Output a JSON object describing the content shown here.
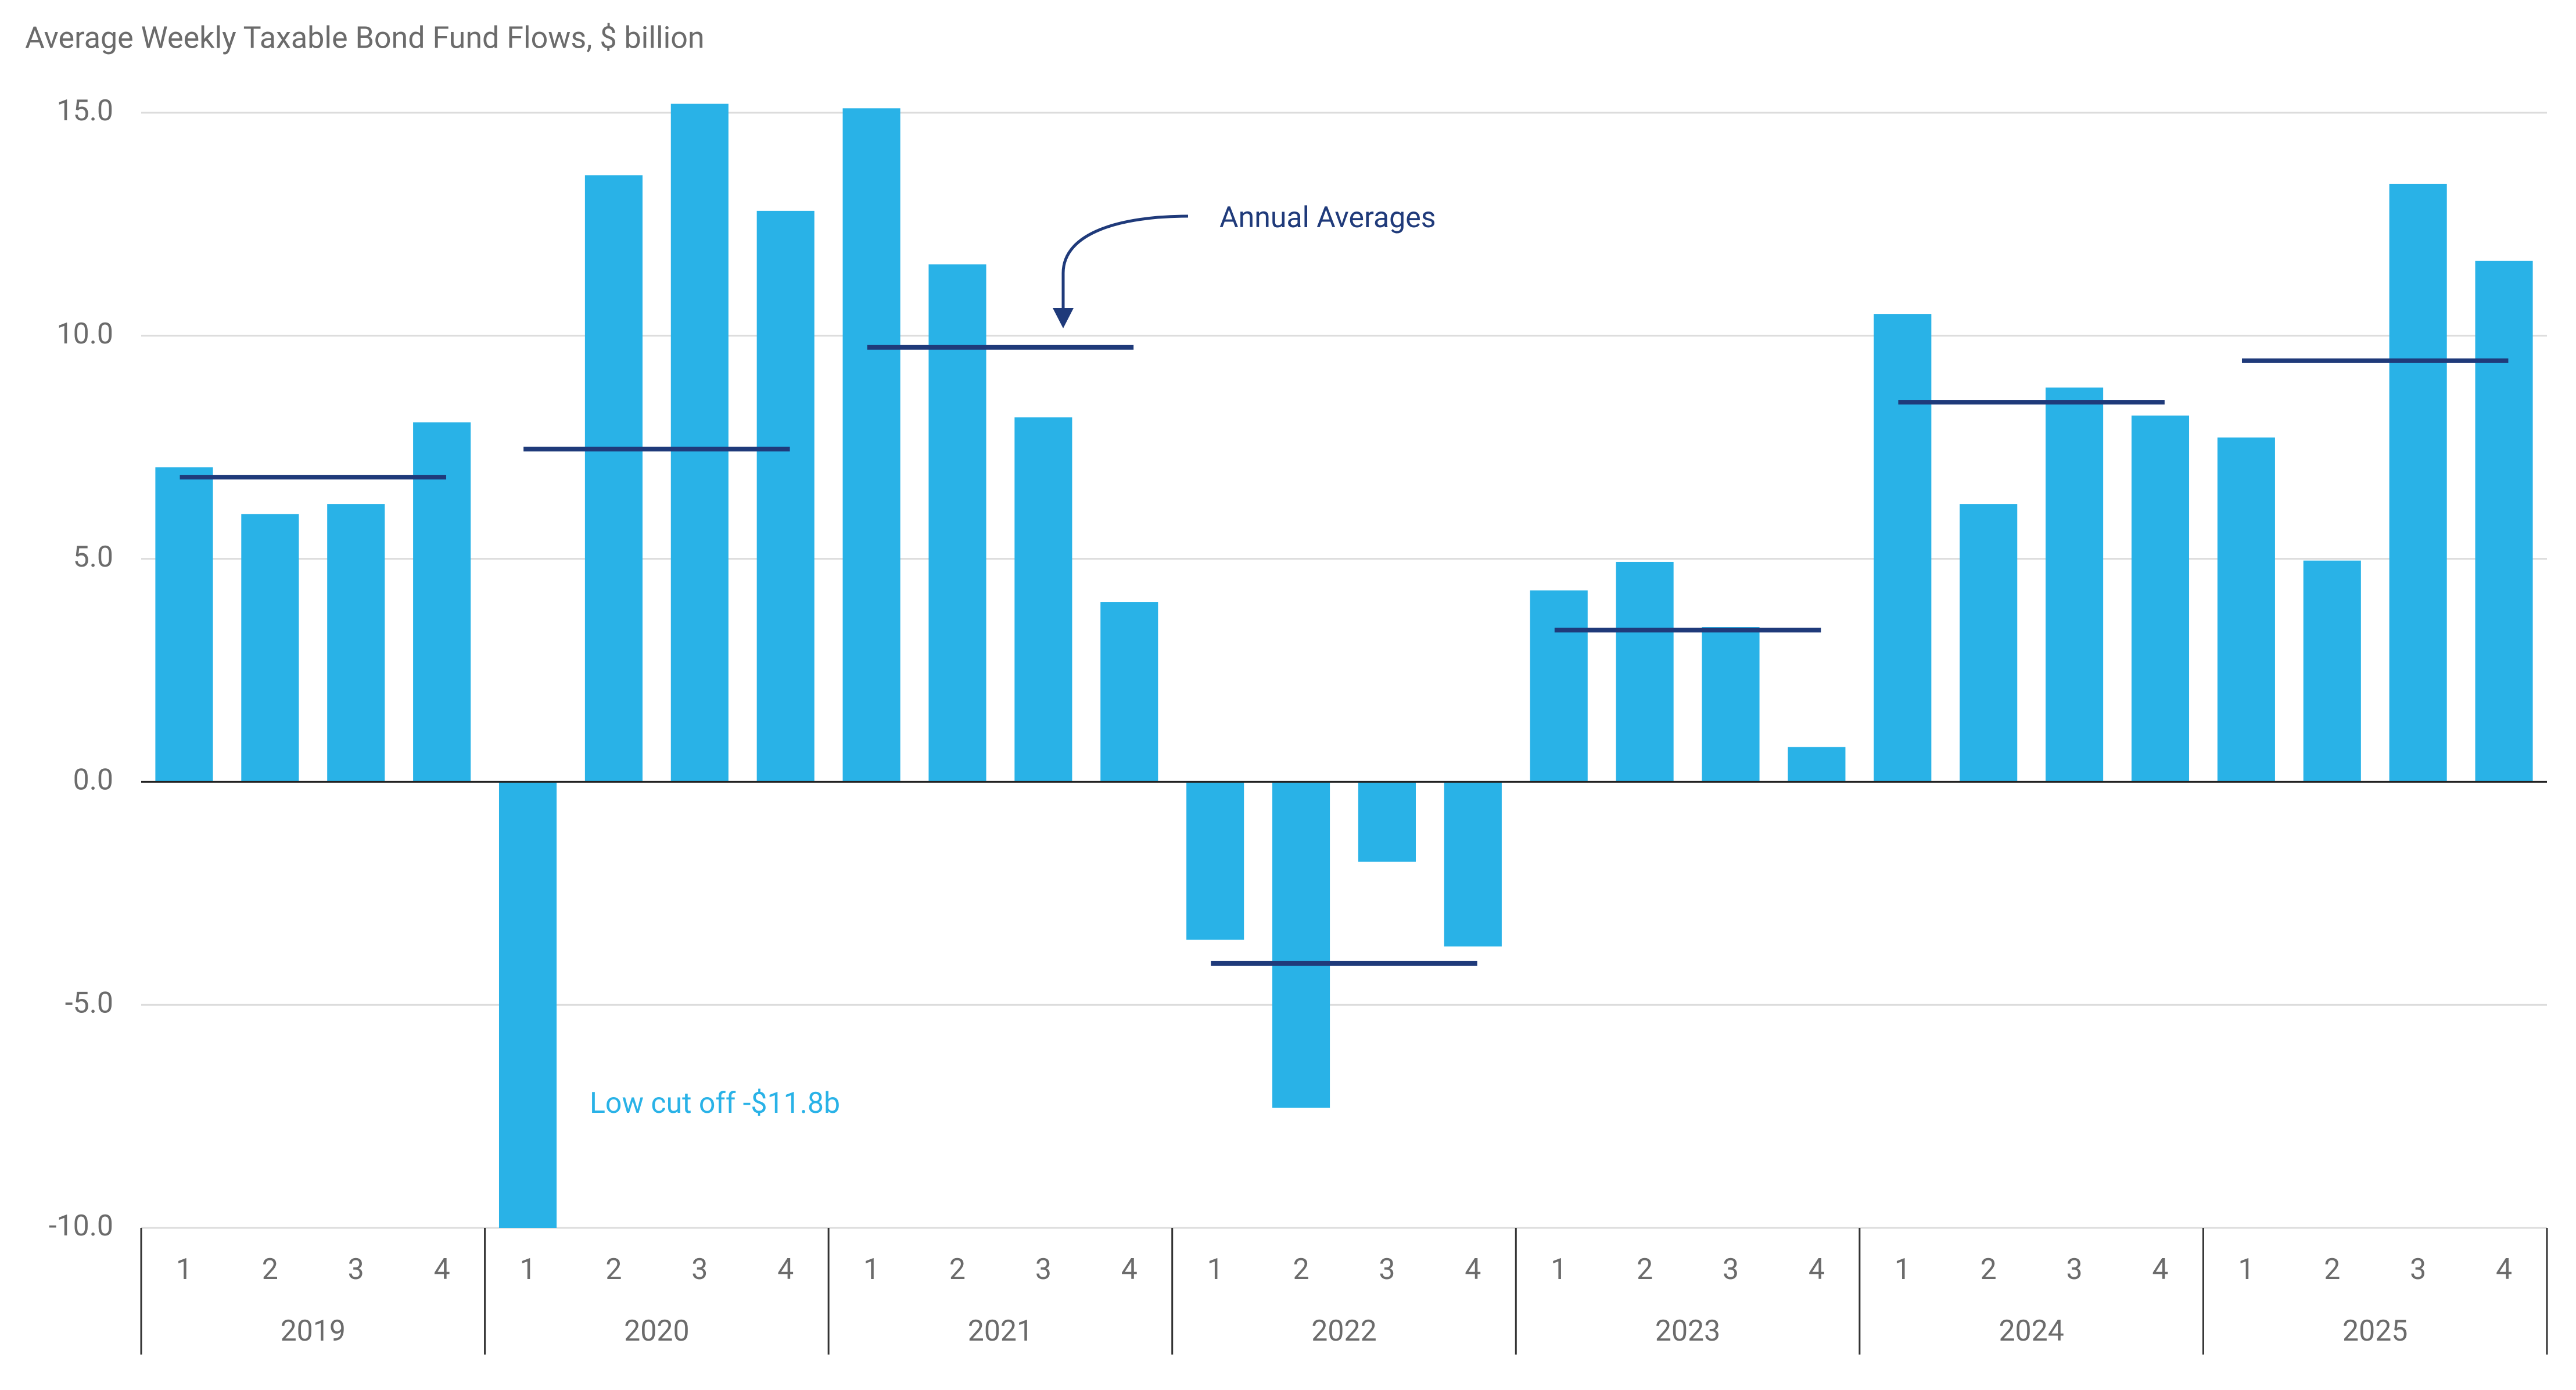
{
  "chart_data": {
    "type": "bar",
    "title": "Average Weekly Taxable Bond Fund Flows, $ billion",
    "categories": [
      "1",
      "2",
      "3",
      "4",
      "1",
      "2",
      "3",
      "4",
      "1",
      "2",
      "3",
      "4",
      "1",
      "2",
      "3",
      "4",
      "1",
      "2",
      "3",
      "4",
      "1",
      "2",
      "3",
      "4",
      "1",
      "2",
      "3",
      "4"
    ],
    "groups": [
      "2019",
      "2020",
      "2021",
      "2022",
      "2023",
      "2024",
      "2025"
    ],
    "values": [
      7.05,
      6.0,
      6.23,
      8.06,
      -11.8,
      13.6,
      15.2,
      12.8,
      15.1,
      11.6,
      8.17,
      4.03,
      -3.54,
      -7.31,
      -1.79,
      -3.69,
      4.29,
      4.93,
      3.47,
      0.78,
      10.49,
      6.23,
      8.84,
      8.21,
      7.72,
      4.96,
      13.4,
      11.68
    ],
    "color": "#29b2e7",
    "averages": {
      "name": "Annual Averages",
      "color": "#1f3a7a",
      "values": [
        6.83,
        7.46,
        9.74,
        -4.07,
        3.4,
        8.51,
        9.44
      ]
    },
    "annotations": [
      "Low cut off -$11.8b"
    ],
    "ylim": [
      -10,
      15
    ],
    "yticks": [
      {
        "value": -10,
        "label": "-10.0"
      },
      {
        "value": -5,
        "label": "-5.0"
      },
      {
        "value": 0,
        "label": "0.0"
      },
      {
        "value": 5,
        "label": "5.0"
      },
      {
        "value": 10,
        "label": "10.0"
      },
      {
        "value": 15,
        "label": "15.0"
      }
    ],
    "grid": true
  }
}
